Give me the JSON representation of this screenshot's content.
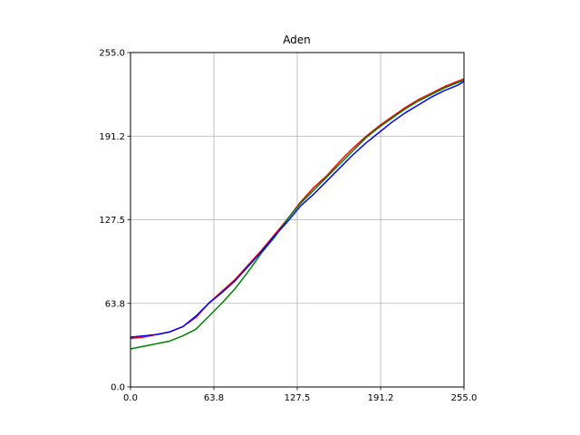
{
  "chart_data": {
    "type": "line",
    "title": "Aden",
    "xlabel": "",
    "ylabel": "",
    "xlim": [
      0,
      255
    ],
    "ylim": [
      0,
      255
    ],
    "grid": true,
    "xticks": [
      "0.0",
      "63.8",
      "127.5",
      "191.2",
      "255.0"
    ],
    "yticks": [
      "0.0",
      "63.8",
      "127.5",
      "191.2",
      "255.0"
    ],
    "tick_values": [
      0,
      63.75,
      127.5,
      191.25,
      255
    ],
    "series": [
      {
        "color": "#ff0000",
        "x": [
          0,
          10,
          20,
          30,
          40,
          50,
          60,
          70,
          80,
          90,
          100,
          110,
          120,
          130,
          140,
          150,
          160,
          170,
          180,
          190,
          200,
          210,
          220,
          230,
          240,
          250,
          255
        ],
        "y": [
          37,
          38,
          40,
          42,
          46,
          53,
          64,
          73,
          82,
          93,
          104,
          116,
          128,
          141,
          152,
          161,
          172,
          182,
          191,
          199,
          206,
          213,
          219,
          224,
          229,
          233,
          235
        ]
      },
      {
        "color": "#008000",
        "x": [
          0,
          10,
          20,
          30,
          40,
          50,
          60,
          70,
          80,
          90,
          100,
          110,
          120,
          130,
          140,
          150,
          160,
          170,
          180,
          190,
          200,
          210,
          220,
          230,
          240,
          250,
          255
        ],
        "y": [
          29,
          31,
          33,
          35,
          39,
          44,
          54,
          64,
          75,
          88,
          102,
          114,
          128,
          140,
          150,
          160,
          170,
          180,
          190,
          198,
          205,
          212,
          218,
          223,
          228,
          232,
          234
        ]
      },
      {
        "color": "#0000ff",
        "x": [
          0,
          10,
          20,
          30,
          40,
          50,
          60,
          70,
          80,
          90,
          100,
          110,
          120,
          130,
          140,
          150,
          160,
          170,
          180,
          190,
          200,
          210,
          220,
          230,
          240,
          250,
          255
        ],
        "y": [
          38,
          39,
          40,
          42,
          46,
          54,
          64,
          72,
          81,
          92,
          103,
          115,
          126,
          138,
          147,
          157,
          167,
          177,
          186,
          194,
          202,
          209,
          215,
          221,
          226,
          230,
          233
        ]
      }
    ]
  }
}
